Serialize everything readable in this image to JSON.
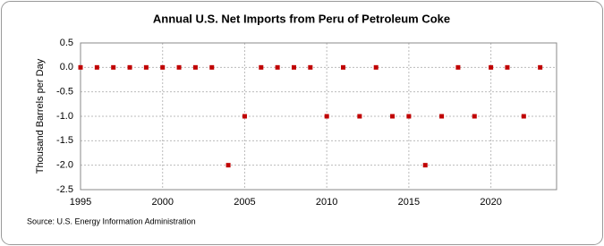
{
  "chart_data": {
    "type": "scatter",
    "title": "Annual U.S. Net Imports from Peru of Petroleum Coke",
    "y_label": "Thousand Barrels per Day",
    "source": "Source: U.S. Energy Information Administration",
    "x": [
      1995,
      1996,
      1997,
      1998,
      1999,
      2000,
      2001,
      2002,
      2003,
      2004,
      2005,
      2006,
      2007,
      2008,
      2009,
      2010,
      2011,
      2012,
      2013,
      2014,
      2015,
      2016,
      2017,
      2018,
      2019,
      2020,
      2021,
      2022,
      2023
    ],
    "values": [
      0,
      0,
      0,
      0,
      0,
      0,
      0,
      0,
      0,
      -2,
      -1,
      0,
      0,
      0,
      0,
      -1,
      0,
      -1,
      0,
      -1,
      -1,
      -2,
      -1,
      0,
      -1,
      0,
      0,
      -1,
      0
    ],
    "color": "#c00000",
    "xlim": [
      1995,
      2024
    ],
    "xticks": [
      1995,
      2000,
      2005,
      2010,
      2015,
      2020
    ],
    "ylim": [
      -2.5,
      0.5
    ],
    "yticks": [
      0.5,
      {
        "value": 0,
        "label": "0.0"
      },
      -0.5,
      {
        "value": -1,
        "label": "-1.0"
      },
      -1.5,
      {
        "value": -2,
        "label": "-2.0"
      },
      -2.5
    ],
    "grid": true
  }
}
